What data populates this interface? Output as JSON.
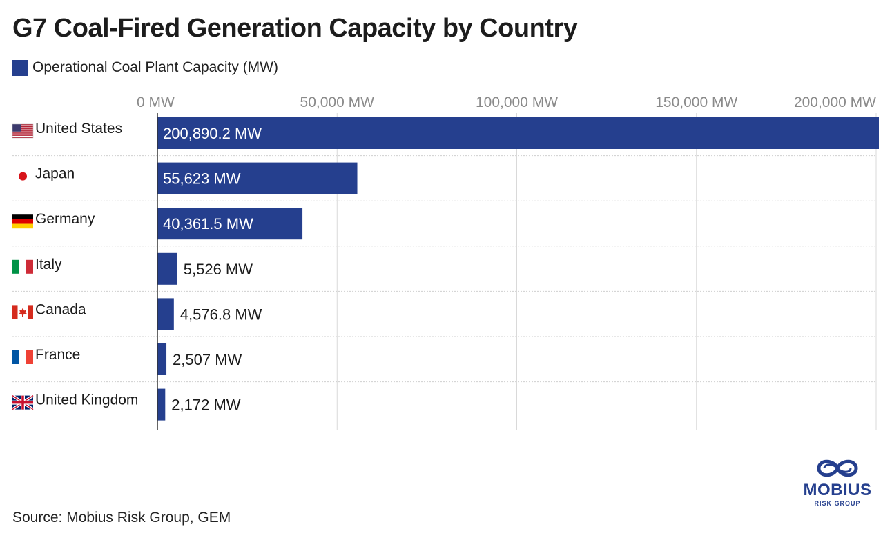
{
  "colors": {
    "bar": "#253f8e",
    "grid": "#d9d9d9",
    "axis_text": "#8a8a8a",
    "text": "#1b1b1b"
  },
  "chart_data": {
    "type": "bar",
    "orientation": "horizontal",
    "title": "G7 Coal-Fired Generation Capacity by Country",
    "legend": {
      "label": "Operational Coal Plant Capacity (MW)",
      "placement": "top-left"
    },
    "categories": [
      "United States",
      "Japan",
      "Germany",
      "Italy",
      "Canada",
      "France",
      "United Kingdom"
    ],
    "flags": [
      "flag-us-icon",
      "flag-japan-icon",
      "flag-germany-icon",
      "flag-italy-icon",
      "flag-canada-icon",
      "flag-france-icon",
      "flag-uk-icon"
    ],
    "series": [
      {
        "name": "Operational Coal Plant Capacity (MW)",
        "values": [
          200890.2,
          55623,
          40361.5,
          5526,
          4576.8,
          2507,
          2172
        ],
        "labels": [
          "200,890.2 MW",
          "55,623 MW",
          "40,361.5 MW",
          "5,526 MW",
          "4,576.8 MW",
          "2,507 MW",
          "2,172 MW"
        ]
      }
    ],
    "xlim": [
      0,
      200000
    ],
    "x_ticks": [
      0,
      50000,
      100000,
      150000,
      200000
    ],
    "x_tick_labels": [
      "0 MW",
      "50,000 MW",
      "100,000 MW",
      "150,000 MW",
      "200,000 MW"
    ],
    "x_axis_position": "top",
    "grid": true
  },
  "footer": {
    "source": "Source: Mobius Risk Group, GEM"
  },
  "logo": {
    "name": "MOBIUS",
    "sub": "RISK GROUP"
  }
}
